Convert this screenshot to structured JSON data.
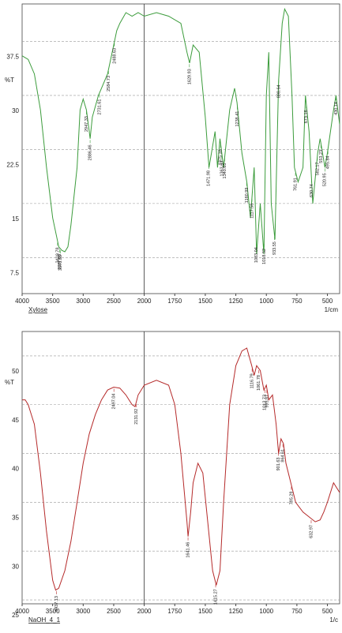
{
  "chart_data": [
    {
      "type": "line",
      "x_label": "1/cm",
      "y_label": "%T",
      "x": [
        4000,
        3900,
        3800,
        3700,
        3600,
        3500,
        3400,
        3350,
        3300,
        3250,
        3200,
        3100,
        3050,
        3000,
        2947,
        2900,
        2886,
        2850,
        2750,
        2700,
        2600,
        2500,
        2450,
        2400,
        2300,
        2200,
        2100,
        2000,
        1900,
        1800,
        1700,
        1650,
        1629,
        1600,
        1550,
        1500,
        1470,
        1450,
        1420,
        1400,
        1380,
        1350,
        1300,
        1260,
        1240,
        1200,
        1160,
        1130,
        1100,
        1080,
        1050,
        1020,
        1000,
        980,
        960,
        930,
        900,
        870,
        850,
        820,
        790,
        770,
        740,
        700,
        680,
        650,
        620,
        580,
        560,
        520,
        500,
        450,
        430,
        400
      ],
      "series": [
        {
          "name": "Xylose",
          "color": "#3c9c3c",
          "values": [
            35.5,
            35,
            33,
            28,
            20,
            13,
            9,
            8.5,
            8.3,
            9,
            12,
            20,
            28,
            29.5,
            28,
            25,
            24,
            27,
            30,
            31,
            33,
            37,
            39,
            40,
            41.5,
            41,
            41.5,
            41,
            41.5,
            41,
            40,
            36,
            34.5,
            37,
            36,
            27,
            20,
            22,
            25,
            20,
            24,
            20,
            28,
            31,
            29,
            22,
            18,
            13,
            20,
            8,
            15,
            8,
            30,
            36,
            15,
            10,
            32,
            40,
            42,
            41,
            30,
            20,
            18,
            20,
            30,
            25,
            15,
            22,
            24,
            20,
            22,
            28,
            30,
            26
          ]
        }
      ],
      "peaks": [
        3419.78,
        3387.03,
        3373.53,
        2947.33,
        2886.46,
        2731.61,
        2584.73,
        2488.63,
        1629.93,
        1471.98,
        1375.38,
        1363.63,
        1340.65,
        1238.41,
        1160.99,
        1117.58,
        1083.04,
        1018.52,
        933.55,
        898.64,
        761.91,
        673.16,
        630.74,
        582.17,
        553.23,
        520.95,
        495.84,
        430.14
      ],
      "xlim": [
        4000,
        400
      ],
      "xticks": [
        4000,
        3500,
        3000,
        2500,
        2000,
        1750,
        1500,
        1250,
        1000,
        750,
        500
      ],
      "ylim": [
        2.5,
        42.7
      ],
      "yticks": [
        7.5,
        15,
        22.5,
        30,
        37.5
      ],
      "grid": true
    },
    {
      "type": "line",
      "x_label": "1/c",
      "y_label": "%T",
      "x": [
        4000,
        3950,
        3900,
        3850,
        3800,
        3700,
        3600,
        3500,
        3450,
        3400,
        3300,
        3200,
        3100,
        3000,
        2900,
        2800,
        2700,
        2600,
        2500,
        2400,
        2300,
        2200,
        2150,
        2100,
        2000,
        1900,
        1800,
        1750,
        1700,
        1650,
        1641,
        1620,
        1600,
        1560,
        1520,
        1480,
        1440,
        1410,
        1380,
        1350,
        1300,
        1250,
        1200,
        1160,
        1120,
        1100,
        1080,
        1050,
        1020,
        1000,
        980,
        950,
        920,
        900,
        880,
        860,
        840,
        800,
        760,
        700,
        650,
        600,
        560,
        530,
        500,
        450,
        400
      ],
      "series": [
        {
          "name": "NaOH_4_1",
          "color": "#b52a2a",
          "values": [
            45.5,
            45.5,
            45,
            44,
            43,
            38,
            32,
            27,
            26,
            26.2,
            28,
            31,
            35,
            39,
            42,
            44,
            45.5,
            46.5,
            46.8,
            46.7,
            46,
            45,
            44.8,
            46,
            47,
            47.5,
            47,
            45,
            40,
            33,
            31.5,
            34,
            37,
            39,
            38,
            33,
            28,
            26.5,
            28,
            35,
            45,
            49,
            50.5,
            50.8,
            49,
            48,
            49,
            48.5,
            46.5,
            47,
            45.5,
            46,
            43,
            40,
            41.5,
            41,
            39,
            37,
            35,
            34,
            33.5,
            33,
            33.2,
            34,
            35,
            37,
            36
          ]
        }
      ],
      "peaks": [
        3437.13,
        2497.04,
        2131.92,
        1641.46,
        1415.27,
        1116.79,
        1061.78,
        1012.73,
        995.87,
        901.63,
        864.61,
        795.29,
        632.97
      ],
      "xlim": [
        4000,
        400
      ],
      "xticks": [
        4000,
        3500,
        3000,
        2500,
        2000,
        1750,
        1500,
        1250,
        1000,
        750,
        500
      ],
      "ylim": [
        24.6,
        52.5
      ],
      "yticks": [
        25,
        30,
        35,
        40,
        45,
        50
      ],
      "grid": true
    }
  ]
}
